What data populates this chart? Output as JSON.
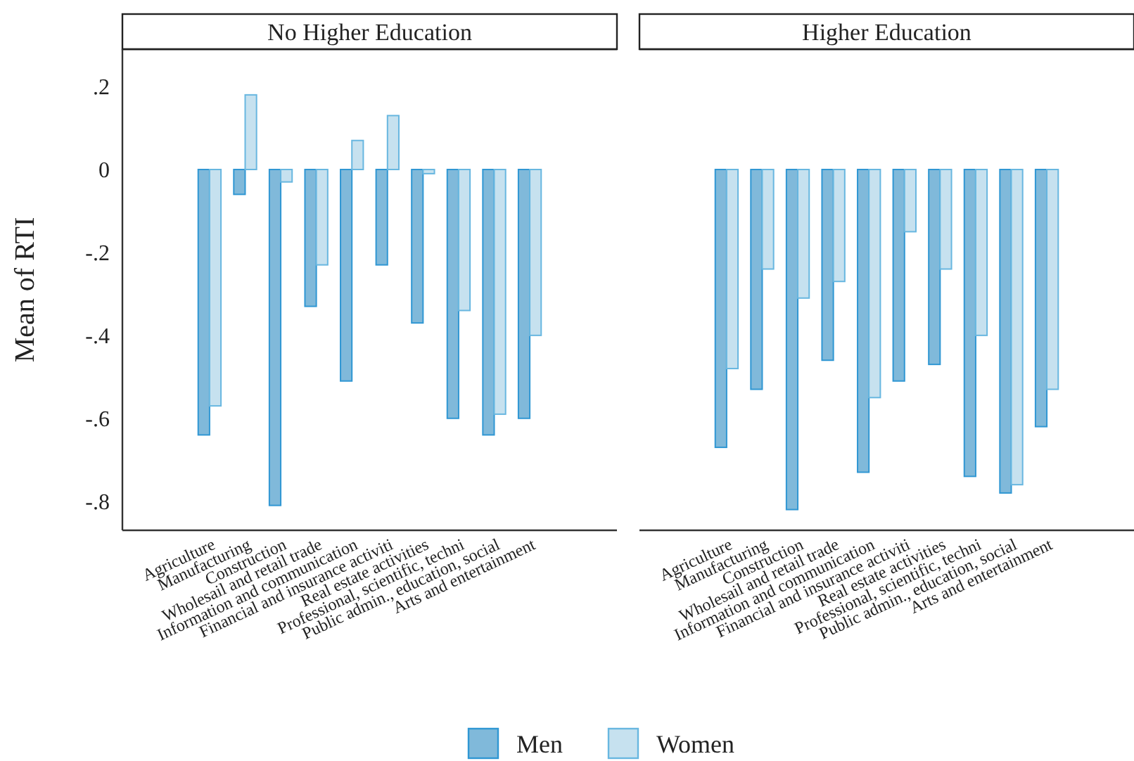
{
  "chart_data": [
    {
      "type": "bar",
      "title": "No Higher Education",
      "ylabel": "Mean of RTI",
      "categories": [
        "Agriculture",
        "Manufacturing",
        "Construction",
        "Wholesail and retail trade",
        "Information and communication",
        "Financial and insurance activiti",
        "Real estate activities",
        "Professional, scientific, techni",
        "Public admin., education, social",
        "Arts and entertainment"
      ],
      "series": [
        {
          "name": "Men",
          "color": "#80b9da",
          "values": [
            -0.64,
            -0.06,
            -0.81,
            -0.33,
            -0.51,
            -0.23,
            -0.37,
            -0.6,
            -0.64,
            -0.6
          ]
        },
        {
          "name": "Women",
          "color": "#c6e1ef",
          "values": [
            -0.57,
            0.18,
            -0.03,
            -0.23,
            0.07,
            0.13,
            -0.01,
            -0.34,
            -0.59,
            -0.4
          ]
        }
      ],
      "ylim": [
        -0.87,
        0.29
      ],
      "yticks": [
        {
          "value": -0.8,
          "label": "-.8"
        },
        {
          "value": -0.6,
          "label": "-.6"
        },
        {
          "value": -0.4,
          "label": "-.4"
        },
        {
          "value": -0.2,
          "label": "-.2"
        },
        0,
        {
          "value": 0.2,
          "label": ".2"
        }
      ],
      "grid": false,
      "legend": "bottom"
    },
    {
      "type": "bar",
      "title": "Higher Education",
      "categories": [
        "Agriculture",
        "Manufacturing",
        "Construction",
        "Wholesail and retail trade",
        "Information and communication",
        "Financial and insurance activiti",
        "Real estate activities",
        "Professional, scientific, techni",
        "Public admin., education, social",
        "Arts and entertainment"
      ],
      "series": [
        {
          "name": "Men",
          "color": "#80b9da",
          "values": [
            -0.67,
            -0.53,
            -0.82,
            -0.46,
            -0.73,
            -0.51,
            -0.47,
            -0.74,
            -0.78,
            -0.62
          ]
        },
        {
          "name": "Women",
          "color": "#c6e1ef",
          "values": [
            -0.48,
            -0.24,
            -0.31,
            -0.27,
            -0.55,
            -0.15,
            -0.24,
            -0.4,
            -0.76,
            -0.53
          ]
        }
      ],
      "ylim": [
        -0.87,
        0.29
      ],
      "grid": false,
      "tick_labels": "x"
    }
  ]
}
